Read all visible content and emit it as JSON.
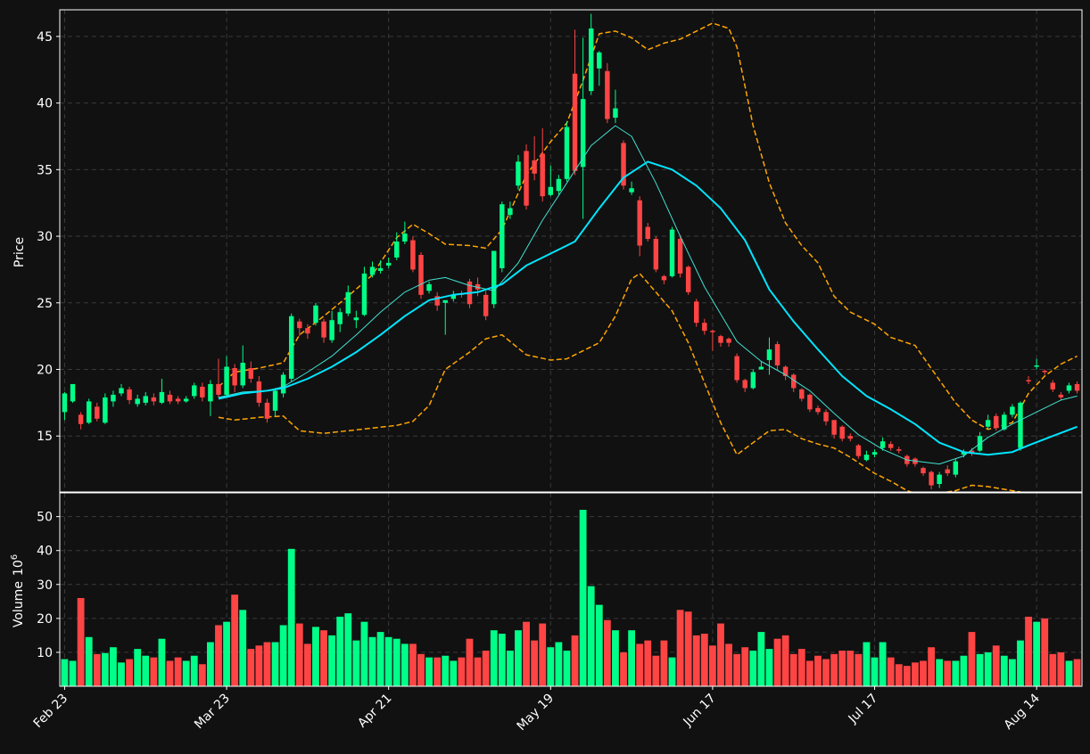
{
  "chart_data": {
    "type": "candlestick",
    "price_panel": {
      "ylabel": "Price",
      "ylim": [
        10.8,
        47.0
      ],
      "yticks": [
        15,
        20,
        25,
        30,
        35,
        40,
        45
      ],
      "grid": true
    },
    "volume_panel": {
      "ylabel": "Volume",
      "ylabel_exp": "10",
      "ylabel_sup": "6",
      "ylim": [
        0,
        57
      ],
      "yticks": [
        10,
        20,
        30,
        40,
        50
      ],
      "grid": true
    },
    "xlim": [
      -0.6,
      125.6
    ],
    "xticks": [
      {
        "index": 0,
        "label": "Feb 23"
      },
      {
        "index": 20,
        "label": "Mar 23"
      },
      {
        "index": 40,
        "label": "Apr 21"
      },
      {
        "index": 60,
        "label": "May 19"
      },
      {
        "index": 80,
        "label": "Jun 17"
      },
      {
        "index": 100,
        "label": "Jul 17"
      },
      {
        "index": 120,
        "label": "Aug 14"
      }
    ],
    "colors": {
      "background": "#111111",
      "up": "#00ff88",
      "down": "#ff4444",
      "ma_fast": "#40e0d0",
      "ma_slow": "#00e5ff",
      "bands": "#ffa500",
      "grid": "#3a3a3a",
      "axis": "#ffffff"
    },
    "candles": [
      [
        16.8,
        18.2,
        16.2,
        18.3
      ],
      [
        17.6,
        18.9,
        17.5,
        18.9
      ],
      [
        16.6,
        15.9,
        15.5,
        16.8
      ],
      [
        16.0,
        17.6,
        15.9,
        17.8
      ],
      [
        17.2,
        16.3,
        16.1,
        17.5
      ],
      [
        16.0,
        17.9,
        15.9,
        18.2
      ],
      [
        17.6,
        18.1,
        17.2,
        18.4
      ],
      [
        18.2,
        18.6,
        18.0,
        18.9
      ],
      [
        18.5,
        17.7,
        17.4,
        18.7
      ],
      [
        17.4,
        17.8,
        17.2,
        18.1
      ],
      [
        17.5,
        18.0,
        17.3,
        18.3
      ],
      [
        17.9,
        17.6,
        17.3,
        18.2
      ],
      [
        17.5,
        18.3,
        17.4,
        19.3
      ],
      [
        18.1,
        17.6,
        17.4,
        18.4
      ],
      [
        17.8,
        17.6,
        17.4,
        18.0
      ],
      [
        17.6,
        17.8,
        17.5,
        18.0
      ],
      [
        18.0,
        18.8,
        17.8,
        19.0
      ],
      [
        18.7,
        17.9,
        17.6,
        19.0
      ],
      [
        17.6,
        18.9,
        16.5,
        19.2
      ],
      [
        18.9,
        18.1,
        17.9,
        20.8
      ],
      [
        18.1,
        20.2,
        18.0,
        21.0
      ],
      [
        20.1,
        18.8,
        18.3,
        20.4
      ],
      [
        18.8,
        20.5,
        18.6,
        21.8
      ],
      [
        20.1,
        19.3,
        19.0,
        20.6
      ],
      [
        19.1,
        17.5,
        17.2,
        19.5
      ],
      [
        17.5,
        16.3,
        16.0,
        17.8
      ],
      [
        16.9,
        18.4,
        16.5,
        18.6
      ],
      [
        18.2,
        19.6,
        17.9,
        19.8
      ],
      [
        19.3,
        24.0,
        19.1,
        24.2
      ],
      [
        23.6,
        23.1,
        22.5,
        23.8
      ],
      [
        23.1,
        22.7,
        22.3,
        23.4
      ],
      [
        23.5,
        24.8,
        23.3,
        25.0
      ],
      [
        23.6,
        22.4,
        22.0,
        23.8
      ],
      [
        22.2,
        23.7,
        22.0,
        24.4
      ],
      [
        23.4,
        24.3,
        22.8,
        24.6
      ],
      [
        24.2,
        25.8,
        24.0,
        26.3
      ],
      [
        23.7,
        23.9,
        23.1,
        24.4
      ],
      [
        24.1,
        27.2,
        24.0,
        27.7
      ],
      [
        27.1,
        27.7,
        26.9,
        28.1
      ],
      [
        27.4,
        27.6,
        27.2,
        28.2
      ],
      [
        27.8,
        28.0,
        27.6,
        28.4
      ],
      [
        28.4,
        29.6,
        28.2,
        30.3
      ],
      [
        29.6,
        30.2,
        29.4,
        31.1
      ],
      [
        29.7,
        27.5,
        27.3,
        30.0
      ],
      [
        28.6,
        25.6,
        25.3,
        28.8
      ],
      [
        25.9,
        26.4,
        25.7,
        26.6
      ],
      [
        25.5,
        24.8,
        24.4,
        25.8
      ],
      [
        25.0,
        25.2,
        22.6,
        25.2
      ],
      [
        25.3,
        25.6,
        25.1,
        25.9
      ],
      [
        25.7,
        25.6,
        25.4,
        25.9
      ],
      [
        26.6,
        24.9,
        24.6,
        26.8
      ],
      [
        26.4,
        26.0,
        25.5,
        26.9
      ],
      [
        25.6,
        24.0,
        23.7,
        25.9
      ],
      [
        24.9,
        28.9,
        24.6,
        28.9
      ],
      [
        27.6,
        32.4,
        27.3,
        32.6
      ],
      [
        31.6,
        32.1,
        31.3,
        32.6
      ],
      [
        33.8,
        35.6,
        33.5,
        36.1
      ],
      [
        36.4,
        32.3,
        32.0,
        36.9
      ],
      [
        35.7,
        34.7,
        34.2,
        37.5
      ],
      [
        36.2,
        33.0,
        32.6,
        38.1
      ],
      [
        33.1,
        33.7,
        33.0,
        35.3
      ],
      [
        33.4,
        34.3,
        33.1,
        34.6
      ],
      [
        34.3,
        38.2,
        34.1,
        38.6
      ],
      [
        42.2,
        34.9,
        34.6,
        45.5
      ],
      [
        35.2,
        40.3,
        31.3,
        44.9
      ],
      [
        40.9,
        45.6,
        40.6,
        46.7
      ],
      [
        42.6,
        43.8,
        41.3,
        43.9
      ],
      [
        42.4,
        38.8,
        38.5,
        43.0
      ],
      [
        38.9,
        39.6,
        38.5,
        41.0
      ],
      [
        37.0,
        33.8,
        33.5,
        37.2
      ],
      [
        33.3,
        33.6,
        33.1,
        34.1
      ],
      [
        32.7,
        29.3,
        28.5,
        33.0
      ],
      [
        30.7,
        29.8,
        29.6,
        31.0
      ],
      [
        29.8,
        27.5,
        27.3,
        30.0
      ],
      [
        27.0,
        26.7,
        26.4,
        27.1
      ],
      [
        27.0,
        30.5,
        26.9,
        30.7
      ],
      [
        29.8,
        27.2,
        26.9,
        30.1
      ],
      [
        27.7,
        25.8,
        25.6,
        27.8
      ],
      [
        25.1,
        23.5,
        23.2,
        25.3
      ],
      [
        23.5,
        22.9,
        22.6,
        23.8
      ],
      [
        22.9,
        22.8,
        21.4,
        23.0
      ],
      [
        22.5,
        22.0,
        21.7,
        22.6
      ],
      [
        22.3,
        22.0,
        21.7,
        22.4
      ],
      [
        21.0,
        19.2,
        19.0,
        21.2
      ],
      [
        19.2,
        18.6,
        18.3,
        19.3
      ],
      [
        18.6,
        19.8,
        18.5,
        20.0
      ],
      [
        20.0,
        20.2,
        20.0,
        20.6
      ],
      [
        20.7,
        21.5,
        19.6,
        22.4
      ],
      [
        21.9,
        20.3,
        20.0,
        22.1
      ],
      [
        20.2,
        19.5,
        19.2,
        20.3
      ],
      [
        19.6,
        18.6,
        18.3,
        19.7
      ],
      [
        18.5,
        17.8,
        17.6,
        18.6
      ],
      [
        18.1,
        17.0,
        16.8,
        18.2
      ],
      [
        17.1,
        16.8,
        16.6,
        17.3
      ],
      [
        16.8,
        16.1,
        15.8,
        17.0
      ],
      [
        16.2,
        15.1,
        14.8,
        16.2
      ],
      [
        15.7,
        14.8,
        14.6,
        15.8
      ],
      [
        15.0,
        14.8,
        14.6,
        15.2
      ],
      [
        14.3,
        13.5,
        13.3,
        14.4
      ],
      [
        13.2,
        13.6,
        13.1,
        13.9
      ],
      [
        13.6,
        13.8,
        13.4,
        14.0
      ],
      [
        14.1,
        14.6,
        13.9,
        14.9
      ],
      [
        14.4,
        14.1,
        13.9,
        14.6
      ],
      [
        14.0,
        13.9,
        13.7,
        14.2
      ],
      [
        13.5,
        12.9,
        12.7,
        13.6
      ],
      [
        13.3,
        12.9,
        12.7,
        13.4
      ],
      [
        12.6,
        12.2,
        12.0,
        12.7
      ],
      [
        12.3,
        11.3,
        11.0,
        12.4
      ],
      [
        11.4,
        12.1,
        11.1,
        12.3
      ],
      [
        12.5,
        12.2,
        12.0,
        12.8
      ],
      [
        12.1,
        13.1,
        11.9,
        13.3
      ],
      [
        13.6,
        13.8,
        13.4,
        14.0
      ],
      [
        13.9,
        13.7,
        13.5,
        14.1
      ],
      [
        13.9,
        15.0,
        13.8,
        15.3
      ],
      [
        15.7,
        16.2,
        15.5,
        16.6
      ],
      [
        16.5,
        15.6,
        15.4,
        16.7
      ],
      [
        15.5,
        16.6,
        15.4,
        16.8
      ],
      [
        16.6,
        17.2,
        16.4,
        17.4
      ],
      [
        14.1,
        17.5,
        13.9,
        17.6
      ],
      [
        19.2,
        19.1,
        18.9,
        19.5
      ],
      [
        20.2,
        20.3,
        20.0,
        20.8
      ],
      [
        19.9,
        19.8,
        19.6,
        20.0
      ],
      [
        19.0,
        18.5,
        18.3,
        19.2
      ],
      [
        18.1,
        17.9,
        17.7,
        18.3
      ],
      [
        18.4,
        18.8,
        18.2,
        19.0
      ],
      [
        18.9,
        18.4,
        18.2,
        19.1
      ]
    ],
    "volume": [
      8.0,
      7.5,
      26.0,
      14.5,
      9.5,
      9.8,
      11.5,
      7.0,
      8.0,
      11.0,
      9.0,
      8.5,
      14.0,
      7.5,
      8.5,
      7.5,
      9.0,
      6.5,
      13.0,
      18.0,
      19.0,
      27.0,
      22.5,
      11.0,
      12.0,
      13.0,
      13.0,
      18.0,
      40.5,
      18.5,
      12.5,
      17.5,
      16.5,
      15.0,
      20.5,
      21.5,
      13.5,
      19.0,
      14.5,
      16.0,
      14.5,
      14.0,
      12.5,
      12.5,
      9.5,
      8.5,
      8.5,
      9.0,
      7.5,
      8.5,
      14.0,
      8.5,
      10.5,
      16.5,
      15.5,
      10.5,
      16.5,
      19.0,
      13.5,
      18.5,
      11.5,
      13.0,
      10.5,
      15.0,
      52.0,
      29.5,
      24.0,
      19.5,
      16.5,
      10.0,
      16.5,
      12.5,
      13.5,
      9.0,
      13.5,
      8.5,
      22.5,
      22.0,
      15.0,
      15.5,
      12.0,
      18.5,
      12.5,
      9.5,
      11.5,
      10.5,
      16.0,
      11.0,
      14.0,
      15.0,
      9.5,
      11.0,
      7.5,
      9.0,
      8.0,
      9.5,
      10.5,
      10.5,
      9.5,
      13.0,
      8.5,
      13.0,
      8.5,
      6.5,
      6.0,
      7.0,
      7.5,
      11.5,
      8.0,
      7.5,
      7.5,
      9.0,
      16.0,
      9.5,
      10.0,
      12.0,
      9.0,
      8.0,
      13.5,
      20.5,
      19.0,
      20.0,
      9.5,
      10.0,
      7.5,
      8.0
    ],
    "ma_fast": [
      [
        19,
        17.9
      ],
      [
        22,
        18.3
      ],
      [
        25,
        18.4
      ],
      [
        27,
        18.7
      ],
      [
        30,
        19.8
      ],
      [
        33,
        21.0
      ],
      [
        36,
        22.6
      ],
      [
        39,
        24.3
      ],
      [
        42,
        25.8
      ],
      [
        45,
        26.7
      ],
      [
        47,
        26.9
      ],
      [
        50,
        26.3
      ],
      [
        53,
        25.9
      ],
      [
        56,
        28.0
      ],
      [
        59,
        31.2
      ],
      [
        62,
        34.0
      ],
      [
        65,
        36.8
      ],
      [
        68,
        38.3
      ],
      [
        70,
        37.5
      ],
      [
        73,
        34.0
      ],
      [
        76,
        30.0
      ],
      [
        79,
        26.2
      ],
      [
        83,
        22.1
      ],
      [
        86,
        20.6
      ],
      [
        89,
        19.6
      ],
      [
        92,
        18.4
      ],
      [
        95,
        16.7
      ],
      [
        98,
        15.1
      ],
      [
        101,
        14.0
      ],
      [
        104,
        13.2
      ],
      [
        108,
        12.9
      ],
      [
        111,
        13.5
      ],
      [
        114,
        14.9
      ],
      [
        117,
        15.9
      ],
      [
        120,
        16.8
      ],
      [
        123,
        17.7
      ],
      [
        125,
        18.0
      ]
    ],
    "ma_slow": [
      [
        19,
        17.8
      ],
      [
        22,
        18.2
      ],
      [
        25,
        18.4
      ],
      [
        27,
        18.6
      ],
      [
        30,
        19.3
      ],
      [
        33,
        20.2
      ],
      [
        36,
        21.3
      ],
      [
        39,
        22.6
      ],
      [
        42,
        24.0
      ],
      [
        45,
        25.2
      ],
      [
        48,
        25.6
      ],
      [
        51,
        25.8
      ],
      [
        54,
        26.4
      ],
      [
        57,
        27.8
      ],
      [
        60,
        28.7
      ],
      [
        63,
        29.6
      ],
      [
        66,
        32.1
      ],
      [
        69,
        34.4
      ],
      [
        72,
        35.6
      ],
      [
        75,
        35.0
      ],
      [
        78,
        33.8
      ],
      [
        81,
        32.1
      ],
      [
        84,
        29.7
      ],
      [
        87,
        26.0
      ],
      [
        90,
        23.6
      ],
      [
        93,
        21.5
      ],
      [
        96,
        19.5
      ],
      [
        99,
        18.0
      ],
      [
        102,
        17.0
      ],
      [
        105,
        15.9
      ],
      [
        108,
        14.5
      ],
      [
        111,
        13.8
      ],
      [
        114,
        13.6
      ],
      [
        117,
        13.8
      ],
      [
        119,
        14.3
      ],
      [
        122,
        15.0
      ],
      [
        125,
        15.7
      ]
    ],
    "bb_upper": [
      [
        19,
        18.7
      ],
      [
        21,
        19.8
      ],
      [
        24,
        20.1
      ],
      [
        27,
        20.5
      ],
      [
        29,
        22.6
      ],
      [
        32,
        24.0
      ],
      [
        35,
        25.5
      ],
      [
        38,
        27.1
      ],
      [
        41,
        29.9
      ],
      [
        43,
        30.9
      ],
      [
        45,
        30.2
      ],
      [
        47,
        29.4
      ],
      [
        50,
        29.3
      ],
      [
        52,
        29.1
      ],
      [
        54,
        30.5
      ],
      [
        57,
        34.6
      ],
      [
        60,
        37.1
      ],
      [
        62,
        38.5
      ],
      [
        64,
        41.7
      ],
      [
        66,
        45.2
      ],
      [
        68,
        45.4
      ],
      [
        70,
        44.9
      ],
      [
        72,
        44.0
      ],
      [
        74,
        44.5
      ],
      [
        76,
        44.8
      ],
      [
        78,
        45.4
      ],
      [
        80,
        46.0
      ],
      [
        82,
        45.6
      ],
      [
        83,
        44.2
      ],
      [
        85,
        38.3
      ],
      [
        87,
        34.0
      ],
      [
        89,
        31.0
      ],
      [
        91,
        29.3
      ],
      [
        93,
        28.0
      ],
      [
        95,
        25.5
      ],
      [
        97,
        24.3
      ],
      [
        100,
        23.4
      ],
      [
        102,
        22.4
      ],
      [
        105,
        21.8
      ],
      [
        108,
        19.2
      ],
      [
        110,
        17.5
      ],
      [
        112,
        16.2
      ],
      [
        114,
        15.5
      ],
      [
        117,
        16.0
      ],
      [
        119,
        18.2
      ],
      [
        121,
        19.5
      ],
      [
        123,
        20.4
      ],
      [
        125,
        21.0
      ]
    ],
    "bb_lower": [
      [
        19,
        16.4
      ],
      [
        21,
        16.2
      ],
      [
        24,
        16.4
      ],
      [
        27,
        16.5
      ],
      [
        29,
        15.4
      ],
      [
        32,
        15.2
      ],
      [
        35,
        15.4
      ],
      [
        38,
        15.6
      ],
      [
        41,
        15.8
      ],
      [
        43,
        16.1
      ],
      [
        45,
        17.3
      ],
      [
        47,
        20.0
      ],
      [
        50,
        21.3
      ],
      [
        52,
        22.3
      ],
      [
        54,
        22.6
      ],
      [
        57,
        21.1
      ],
      [
        60,
        20.7
      ],
      [
        62,
        20.8
      ],
      [
        64,
        21.4
      ],
      [
        66,
        22.0
      ],
      [
        68,
        24.0
      ],
      [
        70,
        26.8
      ],
      [
        71,
        27.2
      ],
      [
        73,
        25.8
      ],
      [
        75,
        24.4
      ],
      [
        77,
        22.0
      ],
      [
        79,
        19.0
      ],
      [
        81,
        16.0
      ],
      [
        83,
        13.6
      ],
      [
        85,
        14.5
      ],
      [
        87,
        15.4
      ],
      [
        89,
        15.5
      ],
      [
        91,
        14.8
      ],
      [
        93,
        14.4
      ],
      [
        95,
        14.1
      ],
      [
        97,
        13.4
      ],
      [
        100,
        12.2
      ],
      [
        102,
        11.6
      ],
      [
        104,
        10.9
      ],
      [
        106,
        10.5
      ],
      [
        108,
        10.7
      ],
      [
        110,
        10.9
      ],
      [
        112,
        11.3
      ],
      [
        114,
        11.2
      ],
      [
        116,
        11.0
      ],
      [
        118,
        10.8
      ],
      [
        120,
        10.5
      ]
    ]
  }
}
